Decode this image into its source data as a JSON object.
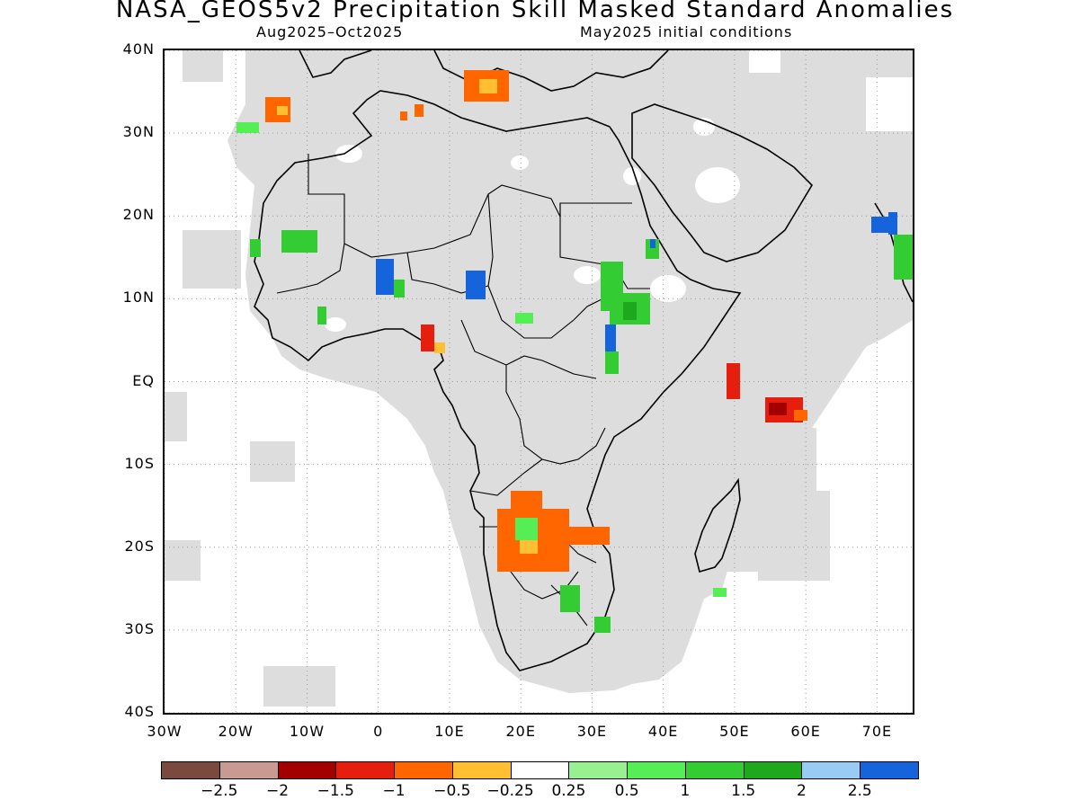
{
  "title": "NASA_GEOS5v2 Precipitation Skill Masked Standard Anomalies",
  "subtitle_left": "Aug2025–Oct2025",
  "subtitle_right": "May2025 initial conditions",
  "map": {
    "lon_range": [
      -30,
      75
    ],
    "lat_range": [
      -40,
      40
    ],
    "lon_ticks": [
      {
        "lon": -30,
        "label": "30W"
      },
      {
        "lon": -20,
        "label": "20W"
      },
      {
        "lon": -10,
        "label": "10W"
      },
      {
        "lon": 0,
        "label": "0"
      },
      {
        "lon": 10,
        "label": "10E"
      },
      {
        "lon": 20,
        "label": "20E"
      },
      {
        "lon": 30,
        "label": "30E"
      },
      {
        "lon": 40,
        "label": "40E"
      },
      {
        "lon": 50,
        "label": "50E"
      },
      {
        "lon": 60,
        "label": "60E"
      },
      {
        "lon": 70,
        "label": "70E"
      }
    ],
    "lat_ticks": [
      {
        "lat": 40,
        "label": "40N"
      },
      {
        "lat": 30,
        "label": "30N"
      },
      {
        "lat": 20,
        "label": "20N"
      },
      {
        "lat": 10,
        "label": "10N"
      },
      {
        "lat": 0,
        "label": "EQ"
      },
      {
        "lat": -10,
        "label": "10S"
      },
      {
        "lat": -20,
        "label": "20S"
      },
      {
        "lat": -30,
        "label": "30S"
      },
      {
        "lat": -40,
        "label": "40S"
      }
    ],
    "mask_color": "#dddddd",
    "grid": true
  },
  "anomaly_regions": [
    {
      "region": "NW Africa (Morocco coast)",
      "level": "-0.5",
      "color": "#ff6600"
    },
    {
      "region": "Canary Islands",
      "level": "1",
      "color": "#55ee55"
    },
    {
      "region": "Algeria",
      "level": "-0.5",
      "color": "#ff6600"
    },
    {
      "region": "Eastern Mediterranean",
      "level": "-0.5",
      "color": "#ff6600"
    },
    {
      "region": "Senegal / Mauritania",
      "level": "1",
      "color": "#33cc33"
    },
    {
      "region": "Burkina Faso / Ghana",
      "level": "2.5",
      "color": "#1564db"
    },
    {
      "region": "Lake Chad area",
      "level": "2.5",
      "color": "#1564db"
    },
    {
      "region": "Gulf of Guinea coast",
      "level": "-1",
      "color": "#e61e0e"
    },
    {
      "region": "Sudan / Ethiopia",
      "level": "1.5",
      "color": "#33cc33"
    },
    {
      "region": "Southern Africa (Angola/Zambia/Zimbabwe)",
      "level": "-0.5",
      "color": "#ff6600"
    },
    {
      "region": "Botswana / South Africa",
      "level": "1",
      "color": "#33cc33"
    },
    {
      "region": "Western Indian Ocean",
      "level": "-1.5",
      "color": "#a30000"
    },
    {
      "region": "West India coast",
      "level": "2.5",
      "color": "#1564db"
    }
  ],
  "colorbar": {
    "colors": [
      "#7a4a3e",
      "#c99a92",
      "#a30000",
      "#e61e0e",
      "#ff6600",
      "#ffbf33",
      "#ffffff",
      "#99f090",
      "#55ee55",
      "#33cc33",
      "#1ea81e",
      "#99ccf5",
      "#1564db"
    ],
    "labels": [
      "−2.5",
      "−2",
      "−1.5",
      "−1",
      "−0.5",
      "−0.25",
      "0.25",
      "0.5",
      "1",
      "1.5",
      "2",
      "2.5"
    ]
  }
}
